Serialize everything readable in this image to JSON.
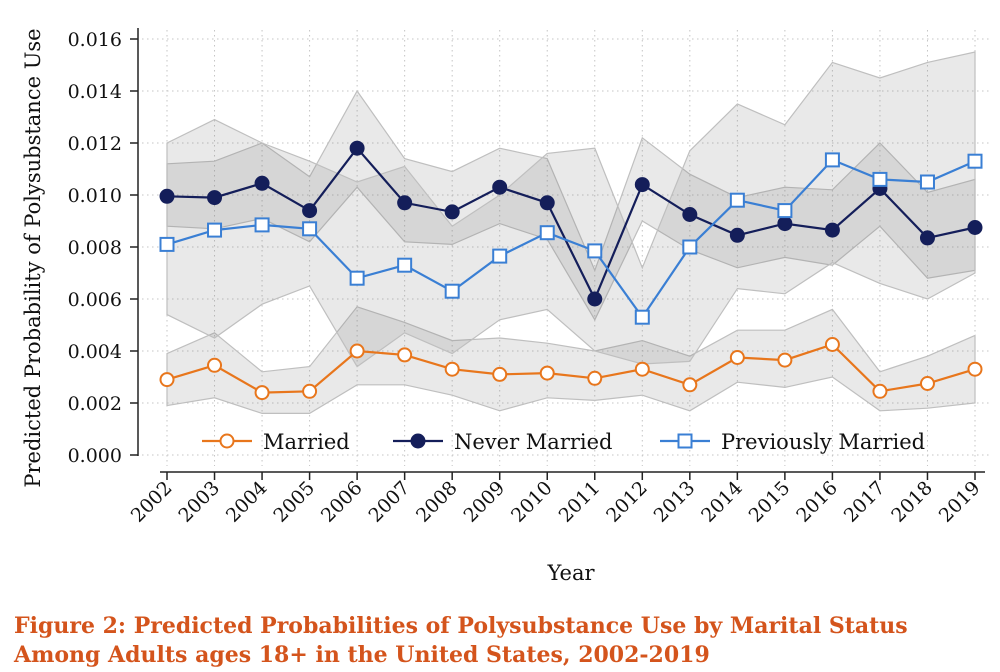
{
  "chart_data": {
    "type": "line",
    "caption_line1": "Figure 2: Predicted Probabilities of Polysubstance Use by Marital Status",
    "caption_line2": "Among Adults ages 18+ in the United States, 2002-2019",
    "xlabel": "Year",
    "ylabel": "Predicted Probability of Polysubstance Use",
    "categories": [
      "2002",
      "2003",
      "2004",
      "2005",
      "2006",
      "2007",
      "2008",
      "2009",
      "2010",
      "2011",
      "2012",
      "2013",
      "2014",
      "2015",
      "2016",
      "2017",
      "2018",
      "2019"
    ],
    "y_ticks": [
      "0.000",
      "0.002",
      "0.004",
      "0.006",
      "0.008",
      "0.010",
      "0.012",
      "0.014",
      "0.016"
    ],
    "ylim": [
      0,
      0.016
    ],
    "grid": true,
    "legend_position": "bottom-inside",
    "series": [
      {
        "name": "Married",
        "color": "#e8761c",
        "marker": "hollow-circle",
        "values": [
          0.0029,
          0.00345,
          0.0024,
          0.00245,
          0.004,
          0.00385,
          0.0033,
          0.0031,
          0.00315,
          0.00295,
          0.0033,
          0.0027,
          0.00375,
          0.00365,
          0.00425,
          0.00245,
          0.00275,
          0.0033
        ],
        "ci_lower": [
          0.0019,
          0.0022,
          0.0016,
          0.0016,
          0.0027,
          0.0027,
          0.0023,
          0.0017,
          0.0022,
          0.0021,
          0.0023,
          0.0017,
          0.0028,
          0.0026,
          0.003,
          0.0017,
          0.0018,
          0.002
        ],
        "ci_upper": [
          0.0039,
          0.0047,
          0.0032,
          0.0034,
          0.0057,
          0.0051,
          0.0044,
          0.0045,
          0.0043,
          0.004,
          0.0044,
          0.0038,
          0.0048,
          0.0048,
          0.0056,
          0.0032,
          0.0038,
          0.0046
        ]
      },
      {
        "name": "Never Married",
        "color": "#141e5a",
        "marker": "filled-circle",
        "values": [
          0.00995,
          0.0099,
          0.01045,
          0.0094,
          0.0118,
          0.0097,
          0.00935,
          0.0103,
          0.0097,
          0.006,
          0.0104,
          0.00925,
          0.00845,
          0.0089,
          0.00865,
          0.01025,
          0.00835,
          0.00875
        ],
        "ci_lower": [
          0.0088,
          0.0087,
          0.0091,
          0.0082,
          0.0103,
          0.0082,
          0.0081,
          0.0089,
          0.0083,
          0.0052,
          0.009,
          0.0079,
          0.0072,
          0.0076,
          0.0073,
          0.0088,
          0.0068,
          0.0071
        ],
        "ci_upper": [
          0.0112,
          0.0113,
          0.012,
          0.0107,
          0.014,
          0.0114,
          0.0109,
          0.0118,
          0.0114,
          0.0071,
          0.0122,
          0.0108,
          0.0099,
          0.0103,
          0.0102,
          0.012,
          0.0101,
          0.0106
        ]
      },
      {
        "name": "Previously Married",
        "color": "#3a7fd4",
        "marker": "hollow-square",
        "values": [
          0.0081,
          0.00865,
          0.00885,
          0.0087,
          0.0068,
          0.0073,
          0.0063,
          0.00765,
          0.00855,
          0.00785,
          0.0053,
          0.008,
          0.0098,
          0.0094,
          0.01135,
          0.0106,
          0.0105,
          0.0113
        ],
        "ci_lower": [
          0.0054,
          0.0045,
          0.0058,
          0.0065,
          0.0034,
          0.0047,
          0.0039,
          0.0052,
          0.0056,
          0.004,
          0.0035,
          0.0036,
          0.0064,
          0.0062,
          0.0074,
          0.0066,
          0.006,
          0.007
        ],
        "ci_upper": [
          0.012,
          0.0129,
          0.012,
          0.0113,
          0.0105,
          0.0111,
          0.0088,
          0.01,
          0.0116,
          0.0118,
          0.0072,
          0.0117,
          0.0135,
          0.0127,
          0.0151,
          0.0145,
          0.0151,
          0.0155
        ]
      }
    ]
  }
}
